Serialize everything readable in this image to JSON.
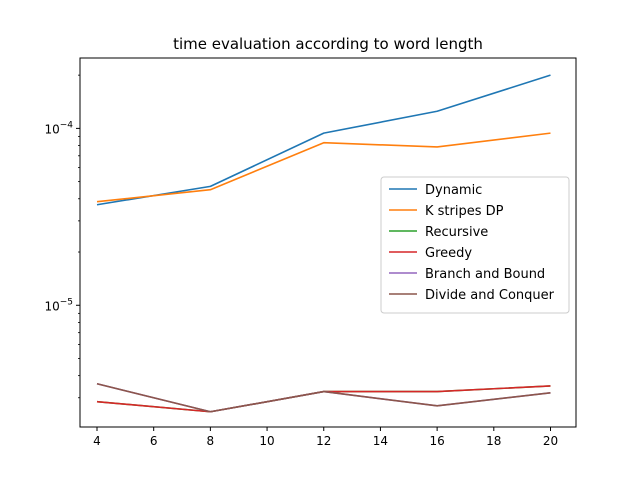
{
  "chart_data": {
    "type": "line",
    "title": "time evaluation according to word length",
    "xlabel": "",
    "ylabel": "",
    "x": [
      4,
      8,
      12,
      16,
      20
    ],
    "x_ticks": [
      4,
      6,
      8,
      10,
      12,
      14,
      16,
      18,
      20
    ],
    "xlim": [
      3.4,
      20.9
    ],
    "ylim": [
      2.05e-06,
      0.00025
    ],
    "y_scale": "log",
    "y_major_ticks": [
      {
        "value": 1e-05,
        "label_base": "10",
        "label_exp": "−5"
      },
      {
        "value": 0.0001,
        "label_base": "10",
        "label_exp": "−4"
      }
    ],
    "grid": false,
    "legend_position": "center-right",
    "series": [
      {
        "name": "Dynamic",
        "color": "#1f77b4",
        "values": [
          3.7e-05,
          4.7e-05,
          9.4e-05,
          0.000125,
          0.0002
        ]
      },
      {
        "name": "K stripes DP",
        "color": "#ff7f0e",
        "values": [
          3.85e-05,
          4.5e-05,
          8.3e-05,
          7.85e-05,
          9.4e-05
        ]
      },
      {
        "name": "Recursive",
        "color": "#2ca02c",
        "values": [
          2.85e-06,
          2.5e-06,
          3.25e-06,
          3.25e-06,
          3.5e-06
        ]
      },
      {
        "name": "Greedy",
        "color": "#d62728",
        "values": [
          2.85e-06,
          2.5e-06,
          3.25e-06,
          3.25e-06,
          3.5e-06
        ]
      },
      {
        "name": "Branch and Bound",
        "color": "#9467bd",
        "values": [
          3.6e-06,
          2.5e-06,
          3.25e-06,
          2.7e-06,
          3.2e-06
        ]
      },
      {
        "name": "Divide and Conquer",
        "color": "#8c564b",
        "values": [
          3.6e-06,
          2.5e-06,
          3.25e-06,
          2.7e-06,
          3.2e-06
        ]
      }
    ]
  }
}
